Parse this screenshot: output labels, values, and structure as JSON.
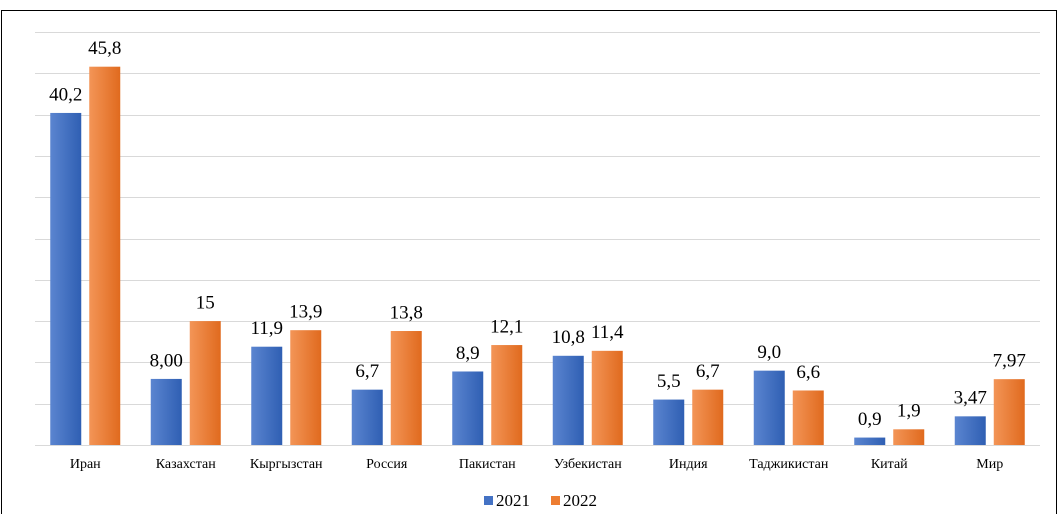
{
  "chart_data": {
    "type": "bar",
    "categories": [
      "Иран",
      "Казахстан",
      "Кыргызстан",
      "Россия",
      "Пакистан",
      "Узбекистан",
      "Индия",
      "Таджикистан",
      "Китай",
      "Мир"
    ],
    "series": [
      {
        "name": "2021",
        "color": "#4472c4",
        "values": [
          40.2,
          8,
          11.9,
          6.7,
          8.9,
          10.8,
          5.5,
          9,
          0.9,
          3.47
        ],
        "value_labels": [
          "40,2",
          "8,00",
          "11,9",
          "6,7",
          "8,9",
          "10,8",
          "5,5",
          "9,0",
          "0,9",
          "3,47"
        ]
      },
      {
        "name": "2022",
        "color": "#ed7d31",
        "values": [
          45.8,
          15,
          13.9,
          13.8,
          12.1,
          11.4,
          6.7,
          6.6,
          1.9,
          7.97
        ],
        "value_labels": [
          "45,8",
          "15",
          "13,9",
          "13,8",
          "12,1",
          "11,4",
          "6,7",
          "6,6",
          "1,9",
          "7,97"
        ]
      }
    ],
    "ylim": [
      0,
      50
    ],
    "yticks": [
      0,
      5,
      10,
      15,
      20,
      25,
      30,
      35,
      40,
      45,
      50
    ],
    "grid": true,
    "legend": "bottom"
  }
}
